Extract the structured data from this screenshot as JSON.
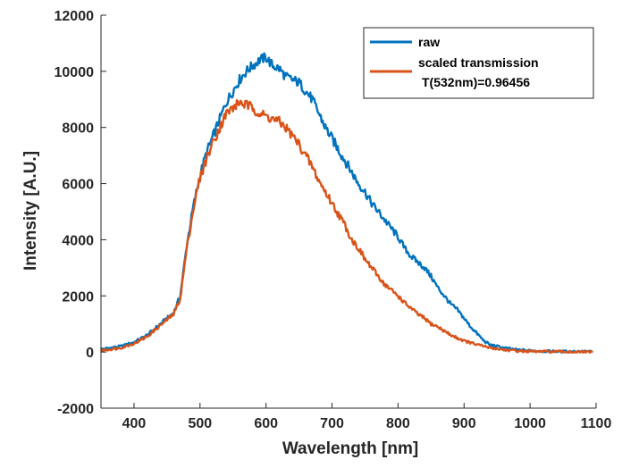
{
  "chart_data": {
    "type": "line",
    "xlabel": "Wavelength [nm]",
    "ylabel": "Intensity [A.U.]",
    "xlim": [
      350,
      1100
    ],
    "ylim": [
      -2000,
      12000
    ],
    "xticks": [
      400,
      500,
      600,
      700,
      800,
      900,
      1000,
      1100
    ],
    "yticks": [
      -2000,
      0,
      2000,
      4000,
      6000,
      8000,
      10000,
      12000
    ],
    "x_tick_labels": [
      "400",
      "500",
      "600",
      "700",
      "800",
      "900",
      "1000",
      "1100"
    ],
    "y_tick_labels": [
      "-2000",
      "0",
      "2000",
      "4000",
      "6000",
      "8000",
      "10000",
      "12000"
    ],
    "grid": false,
    "legend_position": "top-right",
    "series": [
      {
        "name": "raw",
        "color": "#0072BD",
        "x": [
          350,
          380,
          400,
          420,
          440,
          450,
          460,
          470,
          480,
          490,
          500,
          510,
          520,
          530,
          540,
          550,
          560,
          570,
          580,
          590,
          600,
          610,
          620,
          630,
          640,
          650,
          660,
          670,
          680,
          690,
          700,
          710,
          720,
          730,
          740,
          750,
          760,
          770,
          780,
          790,
          800,
          810,
          820,
          830,
          840,
          850,
          860,
          870,
          880,
          890,
          900,
          910,
          920,
          930,
          940,
          950,
          960,
          980,
          1000,
          1020,
          1050,
          1080,
          1095
        ],
        "y": [
          100,
          200,
          350,
          600,
          1000,
          1200,
          1400,
          2000,
          3800,
          5200,
          6300,
          7100,
          7700,
          8300,
          8900,
          9300,
          9700,
          10000,
          10200,
          10400,
          10500,
          10200,
          10100,
          9800,
          9700,
          9600,
          9300,
          9000,
          8500,
          8000,
          7600,
          7200,
          6800,
          6400,
          6000,
          5700,
          5300,
          5000,
          4700,
          4400,
          4100,
          3700,
          3400,
          3200,
          3000,
          2700,
          2300,
          2000,
          1700,
          1500,
          1200,
          900,
          650,
          400,
          250,
          200,
          150,
          80,
          50,
          30,
          20,
          20,
          10
        ]
      },
      {
        "name": "scaled transmission\nT(532nm)=0.96456",
        "color": "#D95319",
        "x": [
          350,
          380,
          400,
          420,
          440,
          450,
          460,
          470,
          480,
          490,
          500,
          510,
          520,
          530,
          540,
          550,
          560,
          570,
          580,
          590,
          600,
          610,
          620,
          630,
          640,
          650,
          660,
          670,
          680,
          690,
          700,
          710,
          720,
          730,
          740,
          750,
          760,
          770,
          780,
          790,
          800,
          810,
          820,
          830,
          840,
          850,
          860,
          870,
          880,
          890,
          900,
          920,
          940,
          960,
          980,
          1000,
          1050,
          1095
        ],
        "y": [
          50,
          150,
          300,
          550,
          950,
          1150,
          1350,
          1900,
          3700,
          5100,
          6200,
          6900,
          7500,
          8000,
          8500,
          8700,
          8900,
          8800,
          8700,
          8500,
          8400,
          8300,
          8200,
          8000,
          7700,
          7400,
          7000,
          6600,
          6100,
          5700,
          5300,
          4900,
          4500,
          4000,
          3700,
          3300,
          3000,
          2700,
          2400,
          2200,
          2000,
          1750,
          1550,
          1350,
          1200,
          1000,
          900,
          750,
          600,
          500,
          400,
          260,
          150,
          80,
          40,
          20,
          10,
          0
        ]
      }
    ]
  }
}
